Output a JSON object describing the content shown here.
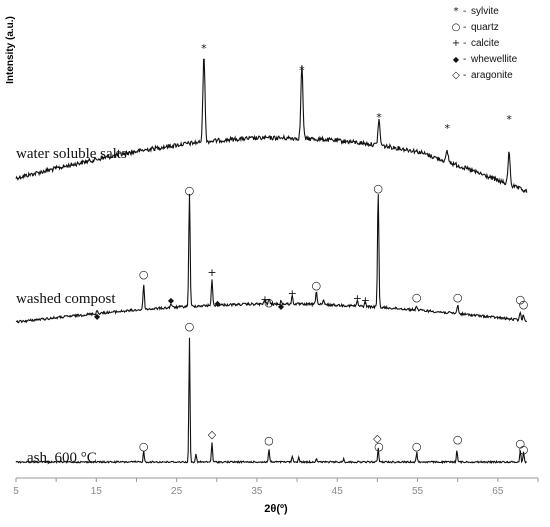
{
  "chart_data": {
    "type": "line",
    "xlabel": "2θ(º)",
    "ylabel": "Intensity (a.u.)",
    "xlim": [
      5,
      70
    ],
    "xticks": [
      5,
      15,
      25,
      35,
      45,
      55,
      65
    ],
    "grid": false,
    "legend_position": "top-right",
    "legend": [
      {
        "symbol": "*",
        "label": "sylvite"
      },
      {
        "symbol": "○",
        "label": "quartz"
      },
      {
        "symbol": "+",
        "label": "calcite"
      },
      {
        "symbol": "◆",
        "label": "whewellite"
      },
      {
        "symbol": "◇",
        "label": "aragonite"
      }
    ],
    "series": [
      {
        "name": "water soluble salts",
        "peaks": [
          {
            "x": 28.4,
            "marker": "*"
          },
          {
            "x": 40.6,
            "marker": "*"
          },
          {
            "x": 50.2,
            "marker": "*"
          },
          {
            "x": 58.7,
            "marker": "*"
          },
          {
            "x": 66.4,
            "marker": "*"
          }
        ]
      },
      {
        "name": "washed compost",
        "peaks": [
          {
            "x": 15.1,
            "marker": "◆"
          },
          {
            "x": 20.9,
            "marker": "○"
          },
          {
            "x": 24.3,
            "marker": "◆"
          },
          {
            "x": 26.6,
            "marker": "○"
          },
          {
            "x": 29.4,
            "marker": "+"
          },
          {
            "x": 30.1,
            "marker": "◆"
          },
          {
            "x": 36.0,
            "marker": "+"
          },
          {
            "x": 36.5,
            "marker": "○"
          },
          {
            "x": 38.0,
            "marker": "◆"
          },
          {
            "x": 39.4,
            "marker": "+"
          },
          {
            "x": 42.4,
            "marker": "○"
          },
          {
            "x": 47.5,
            "marker": "+"
          },
          {
            "x": 48.5,
            "marker": "+"
          },
          {
            "x": 50.1,
            "marker": "○"
          },
          {
            "x": 54.9,
            "marker": "○"
          },
          {
            "x": 60.0,
            "marker": "○"
          },
          {
            "x": 67.8,
            "marker": "○"
          },
          {
            "x": 68.2,
            "marker": "○"
          }
        ]
      },
      {
        "name": "ash, 600 °C",
        "peaks": [
          {
            "x": 20.9,
            "marker": "○"
          },
          {
            "x": 26.6,
            "marker": "○"
          },
          {
            "x": 29.4,
            "marker": "◇"
          },
          {
            "x": 36.5,
            "marker": "○"
          },
          {
            "x": 50.0,
            "marker": "◇"
          },
          {
            "x": 50.2,
            "marker": "○"
          },
          {
            "x": 54.9,
            "marker": "○"
          },
          {
            "x": 60.0,
            "marker": "○"
          },
          {
            "x": 67.8,
            "marker": "○"
          },
          {
            "x": 68.2,
            "marker": "○"
          }
        ]
      }
    ]
  }
}
